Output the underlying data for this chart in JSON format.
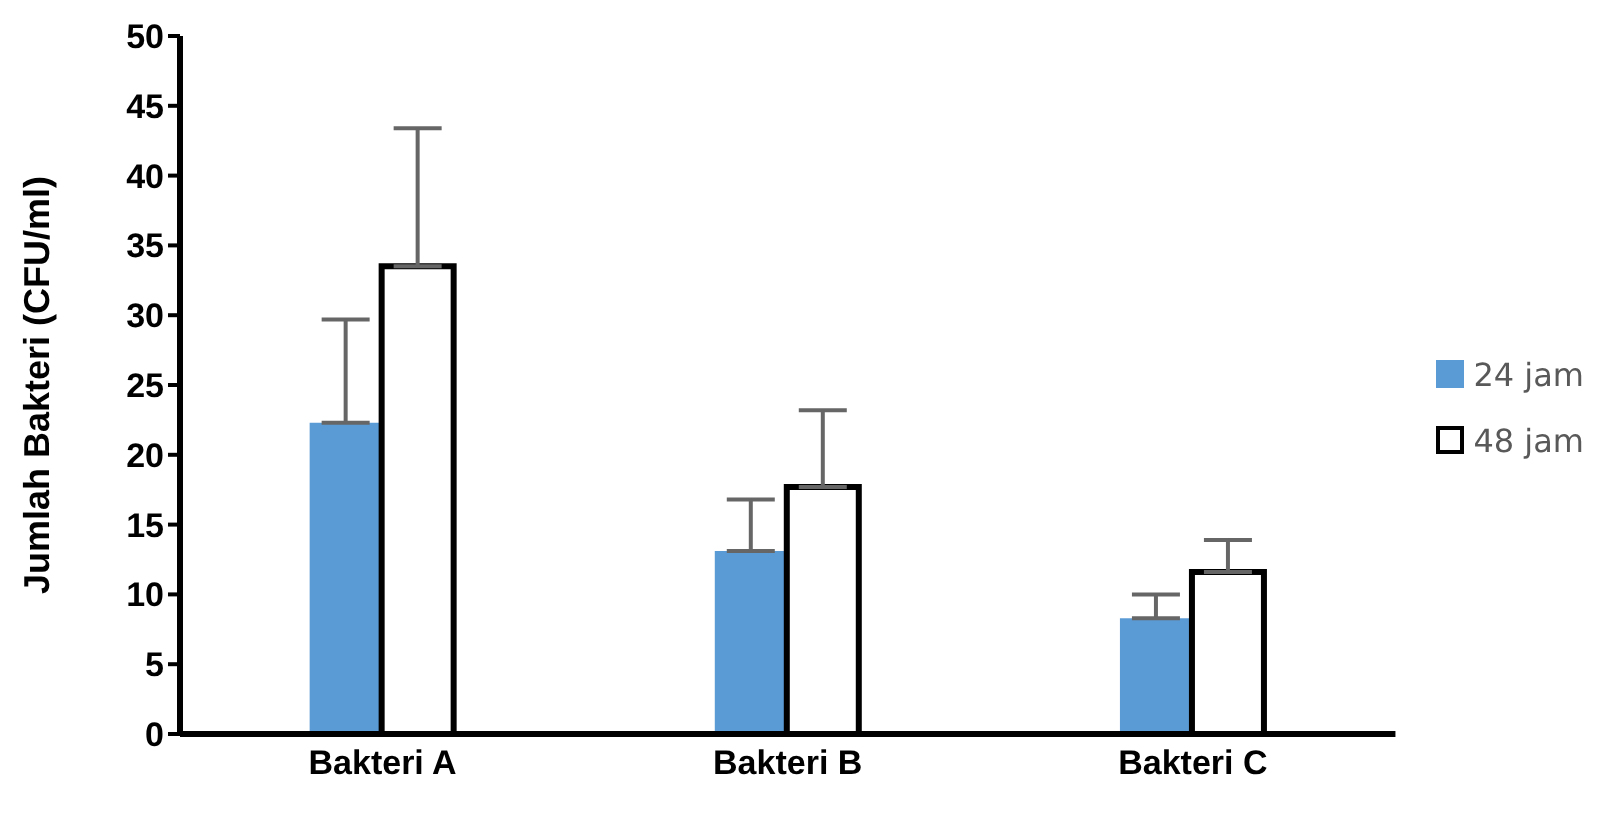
{
  "chart_data": {
    "type": "bar",
    "ylabel": "Jumlah Bakteri (CFU/ml)",
    "categories": [
      "Bakteri A",
      "Bakteri B",
      "Bakteri C"
    ],
    "series": [
      {
        "name": "24 jam",
        "color": "#5b9bd5",
        "values": [
          22.3,
          13.1,
          8.3
        ],
        "errors": [
          [
            22.3,
            29.7
          ],
          [
            13.1,
            16.8
          ],
          [
            8.3,
            10.0
          ]
        ]
      },
      {
        "name": "48 jam",
        "color": "#ffffff",
        "values": [
          33.5,
          17.7,
          11.6
        ],
        "errors": [
          [
            33.5,
            43.4
          ],
          [
            17.7,
            23.2
          ],
          [
            11.6,
            13.9
          ]
        ]
      }
    ],
    "ylim": [
      0,
      50
    ],
    "yticks": [
      0,
      5,
      10,
      15,
      20,
      25,
      30,
      35,
      40,
      45,
      50
    ],
    "grid": false,
    "legend": "right"
  }
}
